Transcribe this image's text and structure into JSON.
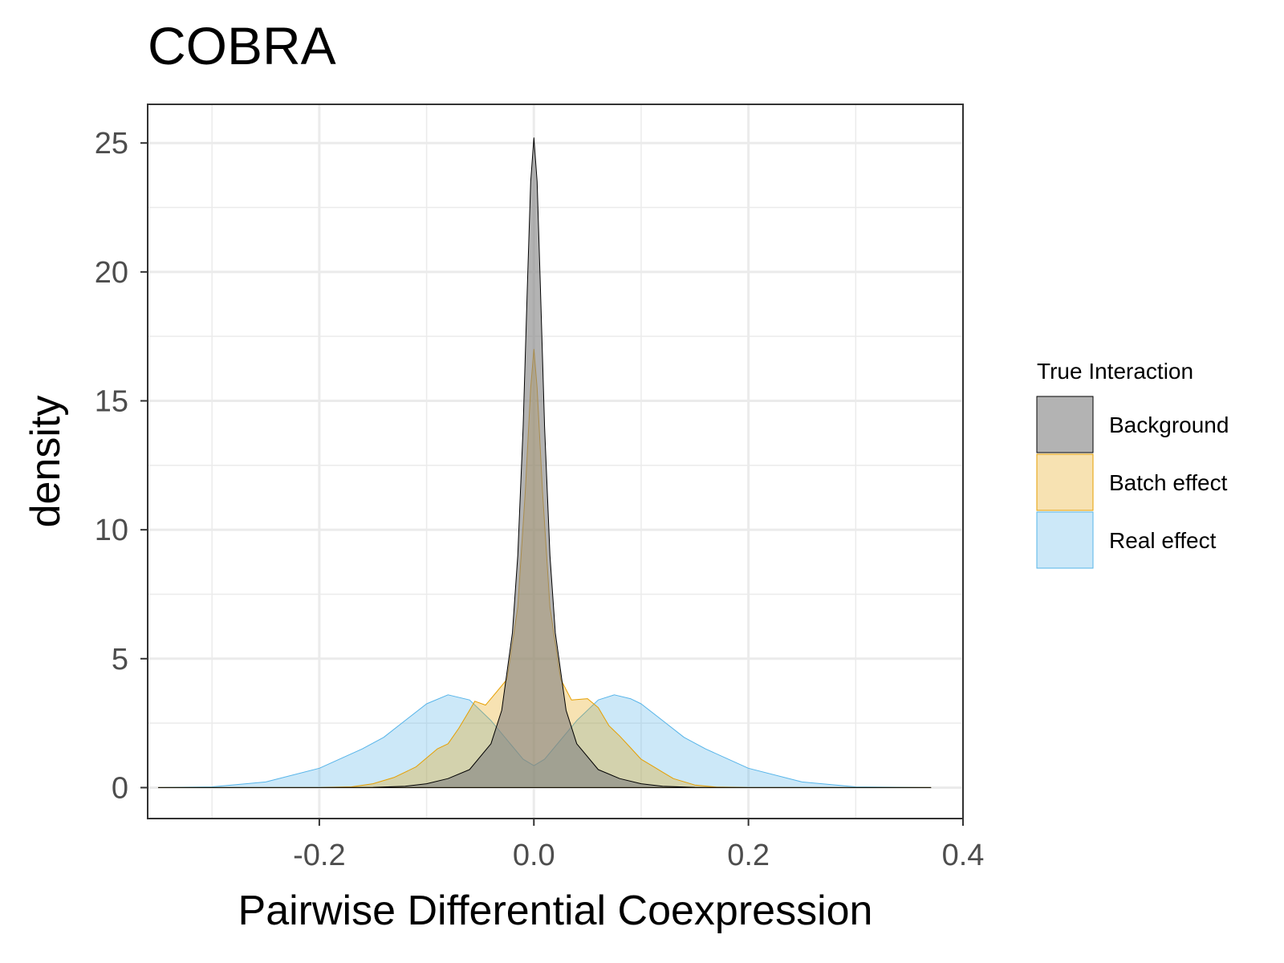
{
  "chart_data": {
    "type": "area",
    "title": "COBRA",
    "xlabel": "Pairwise Differential Coexpression",
    "ylabel": "density",
    "xlim": [
      -0.36,
      0.4
    ],
    "ylim": [
      -1.2,
      26.5
    ],
    "x_ticks": [
      -0.2,
      0.0,
      0.2,
      0.4
    ],
    "x_tick_labels": [
      "-0.2",
      "0.0",
      "0.2",
      "0.4"
    ],
    "y_ticks": [
      0,
      5,
      10,
      15,
      20,
      25
    ],
    "y_tick_labels": [
      "0",
      "5",
      "10",
      "15",
      "20",
      "25"
    ],
    "grid": true,
    "legend": {
      "title": "True Interaction",
      "position": "right"
    },
    "series": [
      {
        "name": "Real effect",
        "fill": "#56B4E9",
        "stroke": "#56B4E9",
        "fill_opacity": 0.3,
        "points": [
          [
            -0.35,
            0.0
          ],
          [
            -0.3,
            0.03
          ],
          [
            -0.25,
            0.22
          ],
          [
            -0.2,
            0.75
          ],
          [
            -0.16,
            1.5
          ],
          [
            -0.14,
            1.95
          ],
          [
            -0.12,
            2.6
          ],
          [
            -0.1,
            3.25
          ],
          [
            -0.08,
            3.6
          ],
          [
            -0.06,
            3.4
          ],
          [
            -0.04,
            2.6
          ],
          [
            -0.02,
            1.6
          ],
          [
            -0.01,
            1.1
          ],
          [
            0.0,
            0.85
          ],
          [
            0.01,
            1.1
          ],
          [
            0.02,
            1.6
          ],
          [
            0.04,
            2.6
          ],
          [
            0.06,
            3.4
          ],
          [
            0.075,
            3.6
          ],
          [
            0.09,
            3.45
          ],
          [
            0.1,
            3.25
          ],
          [
            0.12,
            2.6
          ],
          [
            0.14,
            1.95
          ],
          [
            0.16,
            1.5
          ],
          [
            0.2,
            0.75
          ],
          [
            0.25,
            0.22
          ],
          [
            0.3,
            0.03
          ],
          [
            0.37,
            0.0
          ]
        ]
      },
      {
        "name": "Batch effect",
        "fill": "#E69F00",
        "stroke": "#E69F00",
        "fill_opacity": 0.3,
        "points": [
          [
            -0.35,
            0.0
          ],
          [
            -0.2,
            0.0
          ],
          [
            -0.17,
            0.03
          ],
          [
            -0.15,
            0.15
          ],
          [
            -0.13,
            0.4
          ],
          [
            -0.11,
            0.8
          ],
          [
            -0.09,
            1.5
          ],
          [
            -0.08,
            1.7
          ],
          [
            -0.07,
            2.3
          ],
          [
            -0.06,
            3.0
          ],
          [
            -0.055,
            3.35
          ],
          [
            -0.045,
            3.2
          ],
          [
            -0.035,
            3.7
          ],
          [
            -0.025,
            4.2
          ],
          [
            -0.015,
            7.0
          ],
          [
            -0.008,
            11.5
          ],
          [
            -0.003,
            15.5
          ],
          [
            0.0,
            17.0
          ],
          [
            0.003,
            15.5
          ],
          [
            0.008,
            11.5
          ],
          [
            0.015,
            7.0
          ],
          [
            0.025,
            4.2
          ],
          [
            0.035,
            3.4
          ],
          [
            0.05,
            3.45
          ],
          [
            0.06,
            3.1
          ],
          [
            0.07,
            2.4
          ],
          [
            0.08,
            2.0
          ],
          [
            0.09,
            1.55
          ],
          [
            0.1,
            1.1
          ],
          [
            0.11,
            0.85
          ],
          [
            0.12,
            0.6
          ],
          [
            0.13,
            0.35
          ],
          [
            0.15,
            0.1
          ],
          [
            0.17,
            0.02
          ],
          [
            0.2,
            0.0
          ],
          [
            0.37,
            0.0
          ]
        ]
      },
      {
        "name": "Background",
        "fill": "#808080",
        "stroke": "#000000",
        "fill_opacity": 0.6,
        "points": [
          [
            -0.35,
            0.0
          ],
          [
            -0.2,
            0.0
          ],
          [
            -0.15,
            0.01
          ],
          [
            -0.12,
            0.05
          ],
          [
            -0.1,
            0.15
          ],
          [
            -0.08,
            0.35
          ],
          [
            -0.06,
            0.7
          ],
          [
            -0.04,
            1.7
          ],
          [
            -0.03,
            3.0
          ],
          [
            -0.02,
            6.0
          ],
          [
            -0.015,
            9.0
          ],
          [
            -0.01,
            14.0
          ],
          [
            -0.006,
            19.5
          ],
          [
            -0.003,
            23.5
          ],
          [
            0.0,
            25.2
          ],
          [
            0.003,
            23.5
          ],
          [
            0.006,
            19.5
          ],
          [
            0.01,
            14.0
          ],
          [
            0.015,
            9.0
          ],
          [
            0.02,
            6.0
          ],
          [
            0.03,
            3.0
          ],
          [
            0.04,
            1.7
          ],
          [
            0.06,
            0.7
          ],
          [
            0.08,
            0.35
          ],
          [
            0.1,
            0.15
          ],
          [
            0.12,
            0.05
          ],
          [
            0.15,
            0.01
          ],
          [
            0.2,
            0.0
          ],
          [
            0.37,
            0.0
          ]
        ]
      }
    ],
    "legend_order": [
      "Background",
      "Batch effect",
      "Real effect"
    ]
  }
}
